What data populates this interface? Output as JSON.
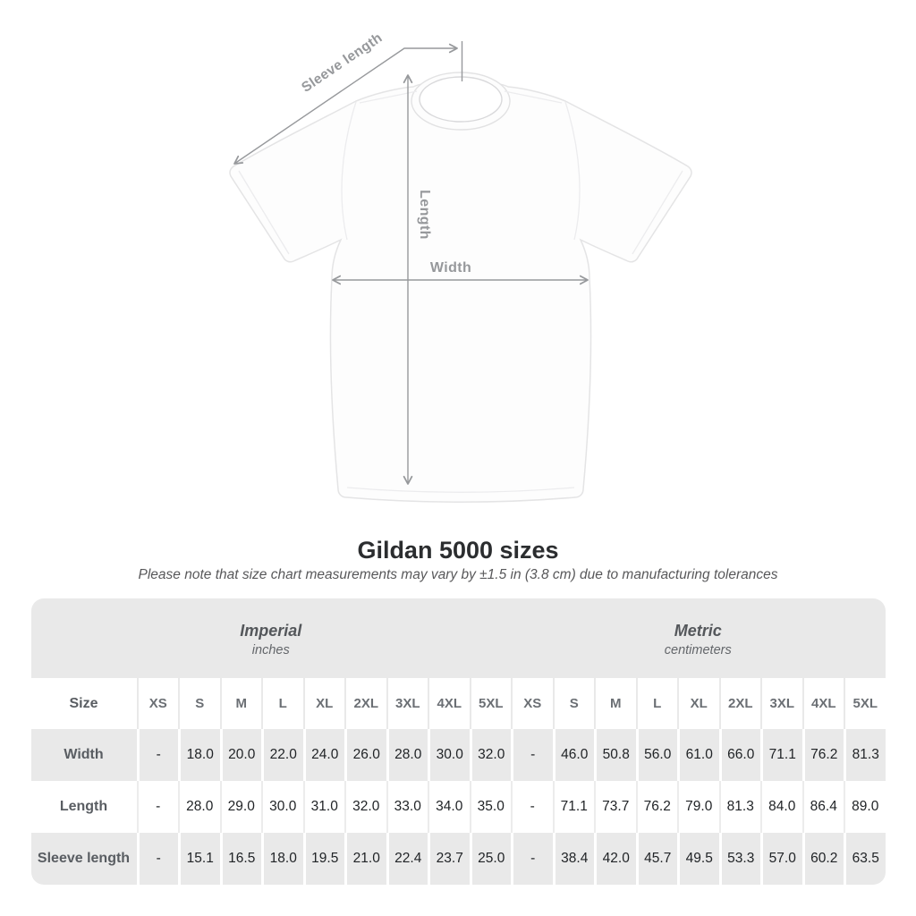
{
  "diagram": {
    "sleeve_length_label": "Sleeve length",
    "length_label": "Length",
    "width_label": "Width"
  },
  "title": "Gildan 5000 sizes",
  "subtitle": "Please note that size chart measurements may vary by ±1.5 in (3.8 cm) due to manufacturing tolerances",
  "chart_data": {
    "type": "table",
    "unit_groups": [
      {
        "label": "Imperial",
        "sublabel": "inches"
      },
      {
        "label": "Metric",
        "sublabel": "centimeters"
      }
    ],
    "size_header": "Size",
    "sizes": [
      "XS",
      "S",
      "M",
      "L",
      "XL",
      "2XL",
      "3XL",
      "4XL",
      "5XL"
    ],
    "rows": [
      {
        "label": "Width",
        "imperial": [
          "-",
          "18.0",
          "20.0",
          "22.0",
          "24.0",
          "26.0",
          "28.0",
          "30.0",
          "32.0"
        ],
        "metric": [
          "-",
          "46.0",
          "50.8",
          "56.0",
          "61.0",
          "66.0",
          "71.1",
          "76.2",
          "81.3"
        ]
      },
      {
        "label": "Length",
        "imperial": [
          "-",
          "28.0",
          "29.0",
          "30.0",
          "31.0",
          "32.0",
          "33.0",
          "34.0",
          "35.0"
        ],
        "metric": [
          "-",
          "71.1",
          "73.7",
          "76.2",
          "79.0",
          "81.3",
          "84.0",
          "86.4",
          "89.0"
        ]
      },
      {
        "label": "Sleeve length",
        "imperial": [
          "-",
          "15.1",
          "16.5",
          "18.0",
          "19.5",
          "21.0",
          "22.4",
          "23.7",
          "25.0"
        ],
        "metric": [
          "-",
          "38.4",
          "42.0",
          "45.7",
          "49.5",
          "53.3",
          "57.0",
          "60.2",
          "63.5"
        ]
      }
    ]
  },
  "colors": {
    "row_shade": "#e9e9e9",
    "annotation_gray": "#97999c",
    "value_text": "#212427",
    "heading_text": "#2b2d2f",
    "muted_label_text": "#595d62",
    "shirt_outline": "#e4e4e5"
  }
}
